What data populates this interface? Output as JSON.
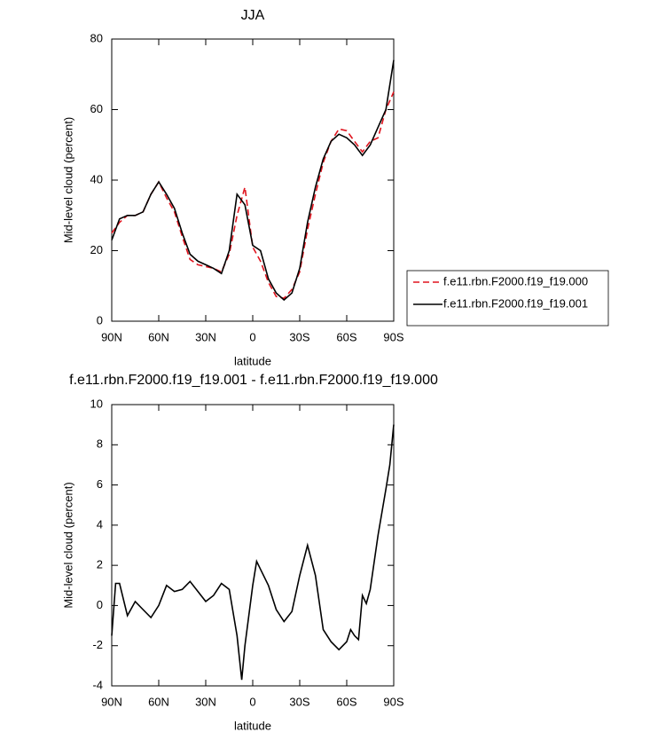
{
  "chart_data": [
    {
      "type": "line",
      "title": "JJA",
      "xlabel": "latitude",
      "ylabel": "Mid-level cloud (percent)",
      "x": [
        90,
        85,
        80,
        75,
        70,
        65,
        60,
        55,
        50,
        45,
        40,
        35,
        30,
        25,
        20,
        15,
        10,
        5,
        0,
        -5,
        -10,
        -15,
        -20,
        -25,
        -30,
        -35,
        -40,
        -45,
        -50,
        -55,
        -60,
        -65,
        -70,
        -75,
        -80,
        -85,
        -90
      ],
      "series": [
        {
          "name": "f.e11.rbn.F2000.f19_f19.000",
          "color": "#e0141e",
          "linestyle": "dashed",
          "values": [
            25,
            28,
            30,
            30,
            31,
            36,
            39.5,
            35,
            31,
            24,
            17.5,
            16,
            15.5,
            15,
            14,
            19,
            30,
            38,
            21,
            17,
            11,
            7,
            6.5,
            9,
            14,
            26,
            36,
            45,
            51,
            54.5,
            54,
            51,
            48,
            51,
            52,
            60,
            65
          ]
        },
        {
          "name": "f.e11.rbn.F2000.f19_f19.001",
          "color": "#000000",
          "linestyle": "solid",
          "values": [
            23,
            29,
            30,
            30,
            31,
            36,
            39.5,
            36,
            32,
            25,
            19,
            17,
            16,
            15,
            13.5,
            20,
            36,
            33,
            21.5,
            20,
            12,
            8,
            6,
            8,
            15,
            28,
            38,
            46,
            51,
            53,
            52,
            50,
            47,
            50,
            55,
            60,
            74
          ]
        }
      ],
      "xlim": [
        90,
        -90
      ],
      "xticks": [
        {
          "value": 90,
          "label": "90N"
        },
        {
          "value": 60,
          "label": "60N"
        },
        {
          "value": 30,
          "label": "30N"
        },
        0,
        {
          "value": -30,
          "label": "30S"
        },
        {
          "value": -60,
          "label": "60S"
        },
        {
          "value": -90,
          "label": "90S"
        }
      ],
      "ylim": [
        0,
        80
      ],
      "yticks": [
        0,
        20,
        40,
        60,
        80
      ],
      "legend": "right"
    },
    {
      "type": "line",
      "title": "f.e11.rbn.F2000.f19_f19.001 - f.e11.rbn.F2000.f19_f19.000",
      "xlabel": "latitude",
      "ylabel": "Mid-level cloud (percent)",
      "x": [
        90,
        87.5,
        85,
        80,
        75,
        70,
        65,
        60,
        55,
        50,
        45,
        40,
        35,
        30,
        25,
        20,
        15,
        10,
        7,
        5,
        0,
        -2.5,
        -5,
        -10,
        -15,
        -20,
        -25,
        -30,
        -35,
        -40,
        -45,
        -50,
        -55,
        -60,
        -62.5,
        -65,
        -67.5,
        -70,
        -72.5,
        -75,
        -80,
        -85,
        -87.5,
        -90
      ],
      "values": [
        -1.5,
        1.1,
        1.1,
        -0.5,
        0.2,
        -0.2,
        -0.6,
        0,
        1,
        0.7,
        0.8,
        1.2,
        0.7,
        0.2,
        0.5,
        1.1,
        0.8,
        -1.5,
        -3.7,
        -2,
        1,
        2.2,
        1.8,
        1,
        -0.2,
        -0.8,
        -0.3,
        1.5,
        3,
        1.5,
        -1.2,
        -1.8,
        -2.2,
        -1.8,
        -1.2,
        -1.5,
        -1.7,
        0.5,
        0.1,
        0.8,
        3.5,
        5.8,
        7,
        9
      ],
      "color": "#000000",
      "xlim": [
        90,
        -90
      ],
      "xticks": [
        {
          "value": 90,
          "label": "90N"
        },
        {
          "value": 60,
          "label": "60N"
        },
        {
          "value": 30,
          "label": "30N"
        },
        0,
        {
          "value": -30,
          "label": "30S"
        },
        {
          "value": -60,
          "label": "60S"
        },
        {
          "value": -90,
          "label": "90S"
        }
      ],
      "ylim": [
        -4,
        10
      ],
      "yticks": [
        -4,
        -2,
        0,
        2,
        4,
        6,
        8,
        10
      ]
    }
  ]
}
